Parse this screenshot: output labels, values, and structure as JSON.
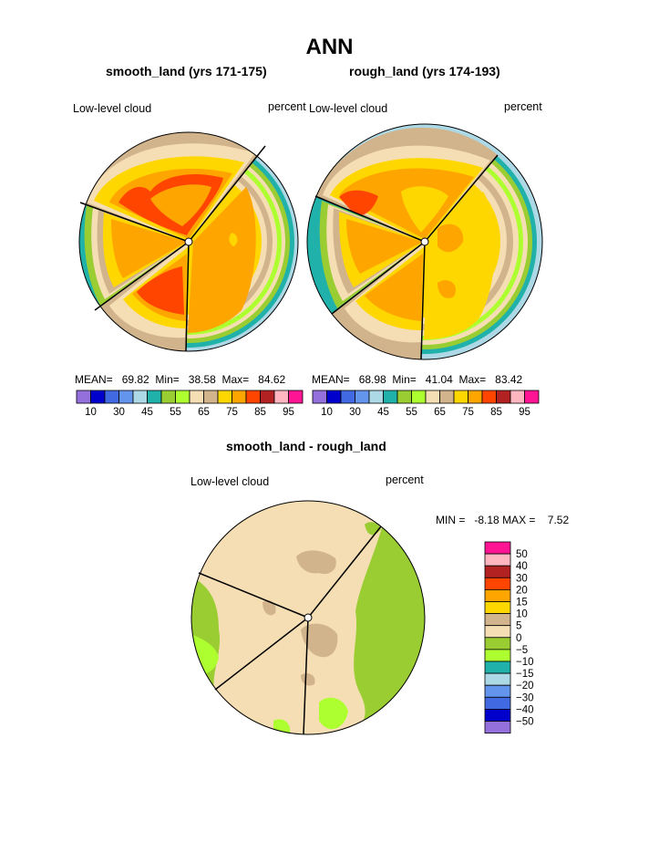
{
  "page": {
    "title": "ANN"
  },
  "colors": {
    "lbar": [
      "#9370db",
      "#0000cd",
      "#4169e1",
      "#6495ed",
      "#add8e6",
      "#20b2aa",
      "#9acd32",
      "#adff2f",
      "#f5deb3",
      "#d2b48c",
      "#ffd700",
      "#ffa500",
      "#ff4500",
      "#b22222",
      "#ffb6c1",
      "#ff1493"
    ],
    "dbar": [
      "#9370db",
      "#0000cd",
      "#4169e1",
      "#6495ed",
      "#add8e6",
      "#20b2aa",
      "#adff2f",
      "#9acd32",
      "#f5deb3",
      "#d2b48c",
      "#ffd700",
      "#ffa500",
      "#ff4500",
      "#b22222",
      "#ffb6c1",
      "#ff1493"
    ],
    "edge": "#000000"
  },
  "chart_data": [
    {
      "type": "polar-contour",
      "title": "smooth_land (yrs 171-175)",
      "left_label": "Low-level cloud",
      "right_label": "percent",
      "stats": {
        "mean_label": "MEAN=",
        "mean": "69.82",
        "min_label": "Min=",
        "min": "38.58",
        "max_label": "Max=",
        "max": "84.62"
      },
      "levels": [
        "10",
        "30",
        "45",
        "55",
        "65",
        "75",
        "85",
        "95"
      ]
    },
    {
      "type": "polar-contour",
      "title": "rough_land (yrs 174-193)",
      "left_label": "Low-level cloud",
      "right_label": "percent",
      "stats": {
        "mean_label": "MEAN=",
        "mean": "68.98",
        "min_label": "Min=",
        "min": "41.04",
        "max_label": "Max=",
        "max": "83.42"
      },
      "levels": [
        "10",
        "30",
        "45",
        "55",
        "65",
        "75",
        "85",
        "95"
      ]
    },
    {
      "type": "polar-contour-difference",
      "title": "smooth_land - rough_land",
      "left_label": "Low-level cloud",
      "right_label": "percent",
      "stats": {
        "min_label": "MIN =",
        "min": "-8.18",
        "max_label": "MAX =",
        "max": "7.52"
      },
      "levels": [
        "50",
        "40",
        "30",
        "20",
        "15",
        "10",
        "5",
        "0",
        "−5",
        "−10",
        "−15",
        "−20",
        "−30",
        "−40",
        "−50"
      ]
    }
  ]
}
